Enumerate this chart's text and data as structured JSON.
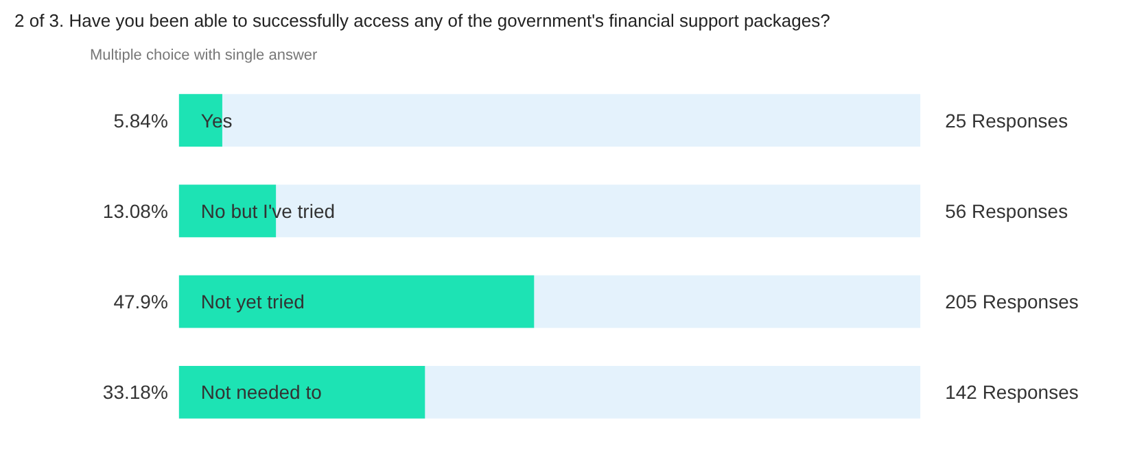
{
  "chart_data": {
    "type": "bar",
    "orientation": "horizontal",
    "title": "2 of 3. Have you been able to successfully access any of the government's financial support packages?",
    "subtitle": "Multiple choice with single answer",
    "categories": [
      "Yes",
      "No but I've tried",
      "Not yet tried",
      "Not needed to"
    ],
    "values": [
      5.84,
      13.08,
      47.9,
      33.18
    ],
    "color": "#1de3b4",
    "value_labels": [
      "5.84%",
      "13.08%",
      "47.9%",
      "33.18%"
    ],
    "xlim": [
      0,
      100
    ],
    "tick_labels": false,
    "grid": false,
    "legend": false,
    "annotations": [
      "25 Responses",
      "56 Responses",
      "205 Responses",
      "142 Responses"
    ]
  }
}
